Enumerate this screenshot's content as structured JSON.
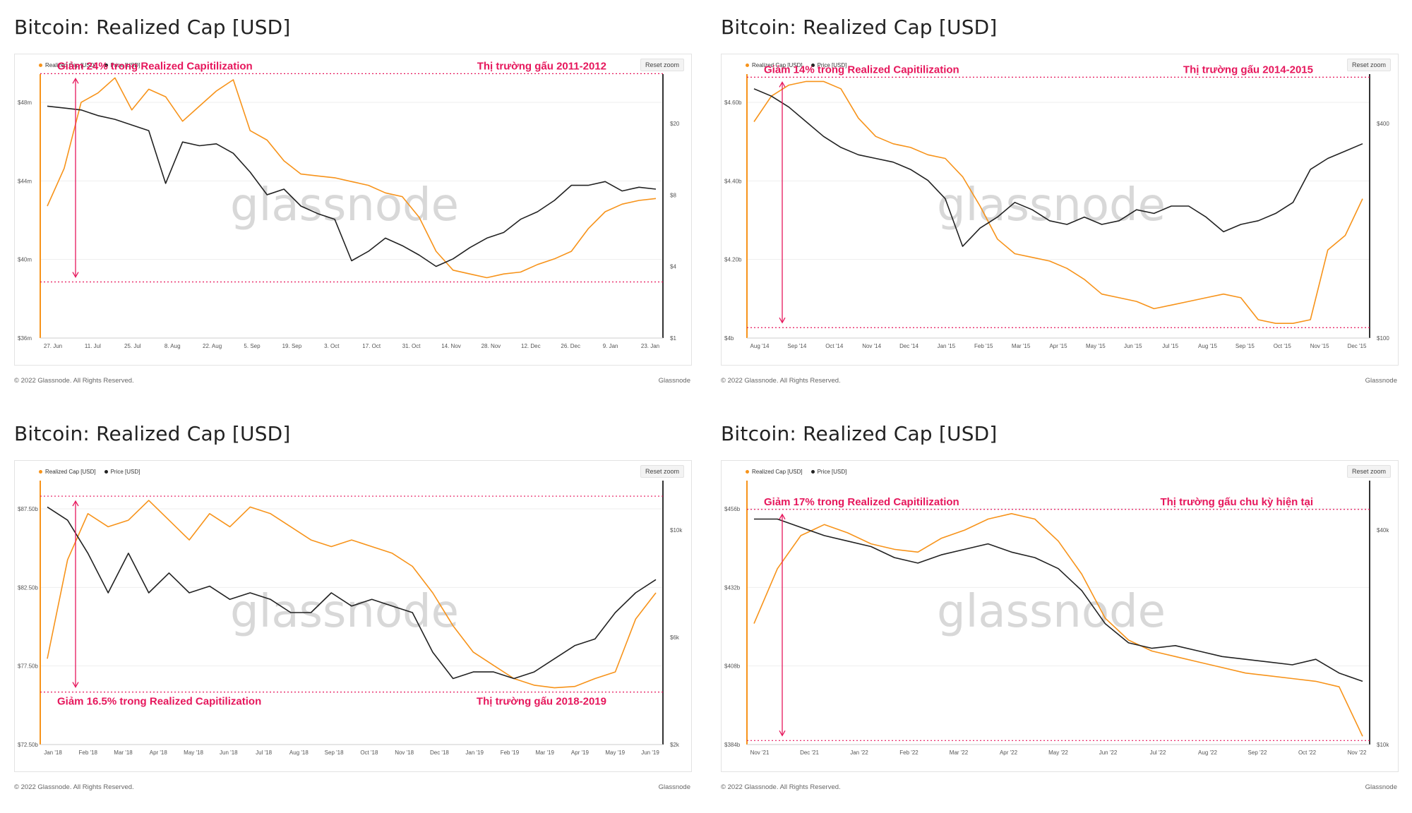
{
  "colors": {
    "realized": "#f7931a",
    "price": "#222222",
    "annotation": "#e6175c",
    "grid": "#eeeeee"
  },
  "common": {
    "reset_zoom": "Reset zoom",
    "watermark": "glassnode",
    "footer_copyright": "© 2022 Glassnode. All Rights Reserved.",
    "footer_brand": "Glassnode"
  },
  "panels": [
    {
      "title": "Bitcoin: Realized Cap [USD]",
      "annotation_left": "Giảm 24% trong Realized Capitilization",
      "annotation_right": "Thị trường gấu 2011-2012",
      "annotation_pos": "top",
      "legend": [
        "Realized Cap [USD]",
        "Price [USD]"
      ]
    },
    {
      "title": "Bitcoin: Realized Cap [USD]",
      "annotation_left": "Giảm 14% trong  Realized Capitilization",
      "annotation_right": "Thị trường gấu 2014-2015",
      "annotation_pos": "top",
      "legend": [
        "Realized Cap [USD]",
        "Price [USD]"
      ]
    },
    {
      "title": "Bitcoin: Realized Cap [USD]",
      "annotation_left": "Giảm 16.5% trong Realized Capitilization",
      "annotation_right": "Thị trường gấu 2018-2019",
      "annotation_pos": "bottom",
      "legend": [
        "Realized Cap [USD]",
        "Price [USD]"
      ]
    },
    {
      "title": "Bitcoin: Realized Cap [USD]",
      "annotation_left": "Giảm 17% trong Realized Capitilization",
      "annotation_right": "Thị trường gấu chu kỳ hiện tại",
      "annotation_pos": "top",
      "legend": [
        "Realized Cap [USD]",
        "Price [USD]"
      ]
    }
  ],
  "chart_data": [
    {
      "type": "line",
      "x_ticks": [
        "27. Jun",
        "11. Jul",
        "25. Jul",
        "8. Aug",
        "22. Aug",
        "5. Sep",
        "19. Sep",
        "3. Oct",
        "17. Oct",
        "31. Oct",
        "14. Nov",
        "28. Nov",
        "12. Dec",
        "26. Dec",
        "9. Jan",
        "23. Jan"
      ],
      "y_left_ticks": [
        "$48m",
        "$44m",
        "$40m",
        "$36m"
      ],
      "y_left_range": [
        36,
        50
      ],
      "y_right_ticks": [
        "$20",
        "$8",
        "$4",
        "$1"
      ],
      "series": [
        {
          "name": "Realized Cap [USD]",
          "values": [
            43,
            45,
            48.5,
            49.0,
            49.8,
            48.1,
            49.2,
            48.8,
            47.5,
            48.3,
            49.1,
            49.7,
            47.0,
            46.5,
            45.4,
            44.7,
            44.6,
            44.5,
            44.3,
            44.1,
            43.7,
            43.5,
            42.4,
            40.6,
            39.6,
            39.4,
            39.2,
            39.4,
            39.5,
            39.9,
            40.2,
            40.6,
            41.8,
            42.7,
            43.1,
            43.3,
            43.4
          ]
        },
        {
          "name": "Price [USD]",
          "values": [
            48.3,
            48.2,
            48.1,
            47.8,
            47.6,
            47.3,
            47.0,
            44.2,
            46.4,
            46.2,
            46.3,
            45.8,
            44.8,
            43.6,
            43.9,
            43.0,
            42.6,
            42.3,
            40.1,
            40.6,
            41.3,
            40.9,
            40.4,
            39.8,
            40.2,
            40.8,
            41.3,
            41.6,
            42.3,
            42.7,
            43.3,
            44.1,
            44.1,
            44.3,
            43.8,
            44.0,
            43.9
          ]
        }
      ]
    },
    {
      "type": "line",
      "x_ticks": [
        "Aug '14",
        "Sep '14",
        "Oct '14",
        "Nov '14",
        "Dec '14",
        "Jan '15",
        "Feb '15",
        "Mar '15",
        "Apr '15",
        "May '15",
        "Jun '15",
        "Jul '15",
        "Aug '15",
        "Sep '15",
        "Oct '15",
        "Nov '15",
        "Dec '15"
      ],
      "y_left_ticks": [
        "$4.60b",
        "$4.40b",
        "$4.20b",
        "$4b"
      ],
      "y_left_range": [
        4.0,
        4.72
      ],
      "y_right_ticks": [
        "$400",
        "$100"
      ],
      "series": [
        {
          "name": "Realized Cap [USD]",
          "values": [
            4.59,
            4.66,
            4.69,
            4.7,
            4.7,
            4.68,
            4.6,
            4.55,
            4.53,
            4.52,
            4.5,
            4.49,
            4.44,
            4.36,
            4.27,
            4.23,
            4.22,
            4.21,
            4.19,
            4.16,
            4.12,
            4.11,
            4.1,
            4.08,
            4.09,
            4.1,
            4.11,
            4.12,
            4.11,
            4.05,
            4.04,
            4.04,
            4.05,
            4.24,
            4.28,
            4.38
          ]
        },
        {
          "name": "Price [USD]",
          "values": [
            4.68,
            4.66,
            4.63,
            4.59,
            4.55,
            4.52,
            4.5,
            4.49,
            4.48,
            4.46,
            4.43,
            4.38,
            4.25,
            4.3,
            4.33,
            4.37,
            4.35,
            4.32,
            4.31,
            4.33,
            4.31,
            4.32,
            4.35,
            4.34,
            4.36,
            4.36,
            4.33,
            4.29,
            4.31,
            4.32,
            4.34,
            4.37,
            4.46,
            4.49,
            4.51,
            4.53
          ]
        }
      ]
    },
    {
      "type": "line",
      "x_ticks": [
        "Jan '18",
        "Feb '18",
        "Mar '18",
        "Apr '18",
        "May '18",
        "Jun '18",
        "Jul '18",
        "Aug '18",
        "Sep '18",
        "Oct '18",
        "Nov '18",
        "Dec '18",
        "Jan '19",
        "Feb '19",
        "Mar '19",
        "Apr '19",
        "May '19",
        "Jun '19"
      ],
      "y_left_ticks": [
        "$87.50b",
        "$82.50b",
        "$77.50b",
        "$72.50b"
      ],
      "y_left_range": [
        72.5,
        92.5
      ],
      "y_right_ticks": [
        "$10k",
        "$6k",
        "$2k"
      ],
      "series": [
        {
          "name": "Realized Cap [USD]",
          "values": [
            79,
            86.5,
            90.0,
            89.0,
            89.5,
            91.0,
            89.5,
            88.0,
            90.0,
            89.0,
            90.5,
            90.0,
            89.0,
            88.0,
            87.5,
            88.0,
            87.5,
            87.0,
            86.0,
            84.0,
            81.5,
            79.5,
            78.5,
            77.5,
            77.0,
            76.8,
            76.9,
            77.5,
            78.0,
            82.0,
            84.0
          ]
        },
        {
          "name": "Price [USD]",
          "values": [
            90.5,
            89.5,
            87.0,
            84.0,
            87.0,
            84.0,
            85.5,
            84.0,
            84.5,
            83.5,
            84.0,
            83.5,
            82.5,
            82.5,
            84.0,
            83.0,
            83.5,
            83.0,
            82.5,
            79.5,
            77.5,
            78.0,
            78.0,
            77.5,
            78.0,
            79.0,
            80.0,
            80.5,
            82.5,
            84.0,
            85.0
          ]
        }
      ]
    },
    {
      "type": "line",
      "x_ticks": [
        "Nov '21",
        "Dec '21",
        "Jan '22",
        "Feb '22",
        "Mar '22",
        "Apr '22",
        "May '22",
        "Jun '22",
        "Jul '22",
        "Aug '22",
        "Sep '22",
        "Oct '22",
        "Nov '22"
      ],
      "y_left_ticks": [
        "$456b",
        "$432b",
        "$408b",
        "$384b"
      ],
      "y_left_range": [
        384,
        480
      ],
      "y_right_ticks": [
        "$40k",
        "$10k"
      ],
      "series": [
        {
          "name": "Realized Cap [USD]",
          "values": [
            428,
            448,
            460,
            464,
            461,
            457,
            455,
            454,
            459,
            462,
            466,
            468,
            466,
            458,
            446,
            430,
            422,
            418,
            416,
            414,
            412,
            410,
            409,
            408,
            407,
            405,
            387
          ]
        },
        {
          "name": "Price [USD]",
          "values": [
            466,
            466,
            463,
            460,
            458,
            456,
            452,
            450,
            453,
            455,
            457,
            454,
            452,
            448,
            440,
            428,
            421,
            419,
            420,
            418,
            416,
            415,
            414,
            413,
            415,
            410,
            407
          ]
        }
      ]
    }
  ]
}
